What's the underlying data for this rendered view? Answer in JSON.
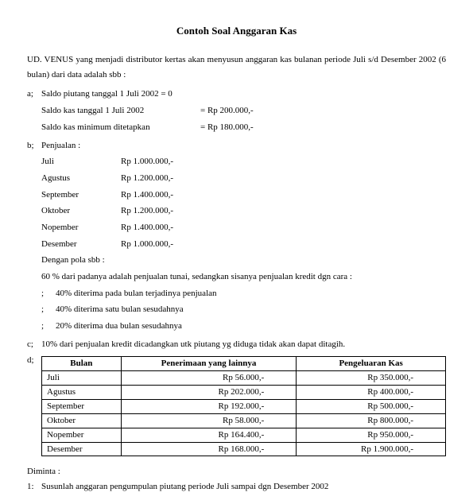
{
  "title": "Contoh Soal Anggaran Kas",
  "intro": "UD. VENUS yang menjadi distributor kertas akan menyusun anggaran kas bulanan periode Juli s/d Desember 2002 (6 bulan) dari data adalah sbb :",
  "a": {
    "marker": "a;",
    "line1": "Saldo piutang tanggal 1 Juli 2002 = 0",
    "line2_label": "Saldo kas tanggal 1 Juli 2002",
    "line2_value": "= Rp 200.000,-",
    "line3_label": "Saldo kas minimum ditetapkan",
    "line3_value": "= Rp 180.000,-"
  },
  "b": {
    "marker": "b;",
    "heading": "Penjualan :",
    "sales": [
      {
        "month": "Juli",
        "amount": "Rp 1.000.000,-"
      },
      {
        "month": "Agustus",
        "amount": "Rp 1.200.000,-"
      },
      {
        "month": "September",
        "amount": "Rp 1.400.000,-"
      },
      {
        "month": "Oktober",
        "amount": "Rp 1.200.000,-"
      },
      {
        "month": "Nopember",
        "amount": "Rp 1.400.000,-"
      },
      {
        "month": "Desember",
        "amount": "Rp 1.000.000,-"
      }
    ],
    "pattern_heading": "Dengan pola sbb :",
    "pattern_line": "60 % dari padanya adalah penjualan tunai, sedangkan sisanya penjualan kredit dgn cara :",
    "bullets": [
      "40% diterima pada bulan terjadinya penjualan",
      "40% diterima satu bulan sesudahnya",
      "20% diterima dua bulan sesudahnya"
    ],
    "bullet_marker": ";"
  },
  "c": {
    "marker": "c;",
    "text": "10% dari penjualan kredit dicadangkan utk piutang yg diduga tidak akan dapat ditagih."
  },
  "d": {
    "marker": "d;",
    "headers": [
      "Bulan",
      "Penerimaan yang lainnya",
      "Pengeluaran Kas"
    ],
    "rows": [
      [
        "Juli",
        "Rp    56.000,-",
        "Rp    350.000,-"
      ],
      [
        "Agustus",
        "Rp  202.000,-",
        "Rp    400.000,-"
      ],
      [
        "September",
        "Rp  192.000,-",
        "Rp    500.000,-"
      ],
      [
        "Oktober",
        "Rp    58.000,-",
        "Rp    800.000,-"
      ],
      [
        "Nopember",
        "Rp  164.400,-",
        "Rp    950.000,-"
      ],
      [
        "Desember",
        "Rp  168.000,-",
        "Rp 1.900.000,-"
      ]
    ]
  },
  "diminta": {
    "label": "Diminta :",
    "item_marker": "1:",
    "item_text": "Susunlah anggaran pengumpulan piutang periode Juli sampai dgn Desember 2002"
  }
}
